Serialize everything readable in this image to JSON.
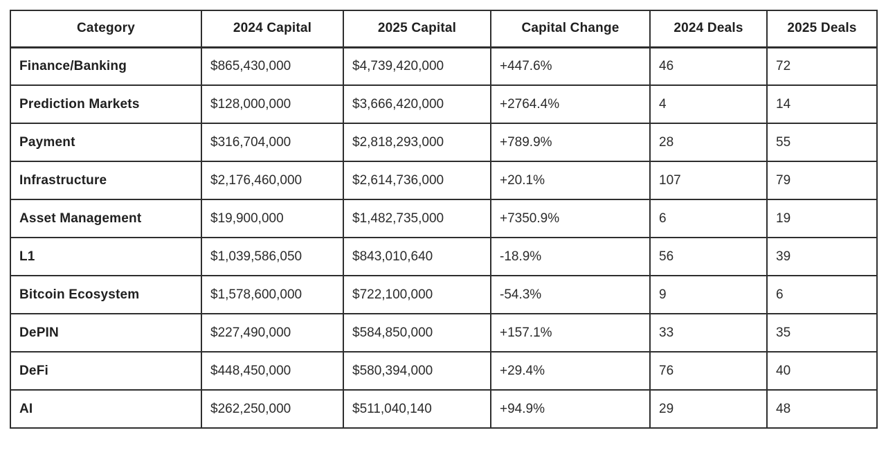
{
  "chart_data": {
    "type": "table",
    "columns": [
      "Category",
      "2024 Capital",
      "2025 Capital",
      "Capital Change",
      "2024 Deals",
      "2025 Deals"
    ],
    "rows": [
      [
        "Finance/Banking",
        "$865,430,000",
        "$4,739,420,000",
        "+447.6%",
        "46",
        "72"
      ],
      [
        "Prediction Markets",
        "$128,000,000",
        "$3,666,420,000",
        "+2764.4%",
        "4",
        "14"
      ],
      [
        "Payment",
        "$316,704,000",
        "$2,818,293,000",
        "+789.9%",
        "28",
        "55"
      ],
      [
        "Infrastructure",
        "$2,176,460,000",
        "$2,614,736,000",
        "+20.1%",
        "107",
        "79"
      ],
      [
        "Asset Management",
        "$19,900,000",
        "$1,482,735,000",
        "+7350.9%",
        "6",
        "19"
      ],
      [
        "L1",
        "$1,039,586,050",
        "$843,010,640",
        "-18.9%",
        "56",
        "39"
      ],
      [
        "Bitcoin Ecosystem",
        "$1,578,600,000",
        "$722,100,000",
        "-54.3%",
        "9",
        "6"
      ],
      [
        "DePIN",
        "$227,490,000",
        "$584,850,000",
        "+157.1%",
        "33",
        "35"
      ],
      [
        "DeFi",
        "$448,450,000",
        "$580,394,000",
        "+29.4%",
        "76",
        "40"
      ],
      [
        "AI",
        "$262,250,000",
        "$511,040,140",
        "+94.9%",
        "29",
        "48"
      ]
    ]
  },
  "colors": {
    "background": "#ffffff",
    "border": "#2e2e2e",
    "header_text": "#1f1f1f",
    "body_text": "#2b2b2b"
  }
}
